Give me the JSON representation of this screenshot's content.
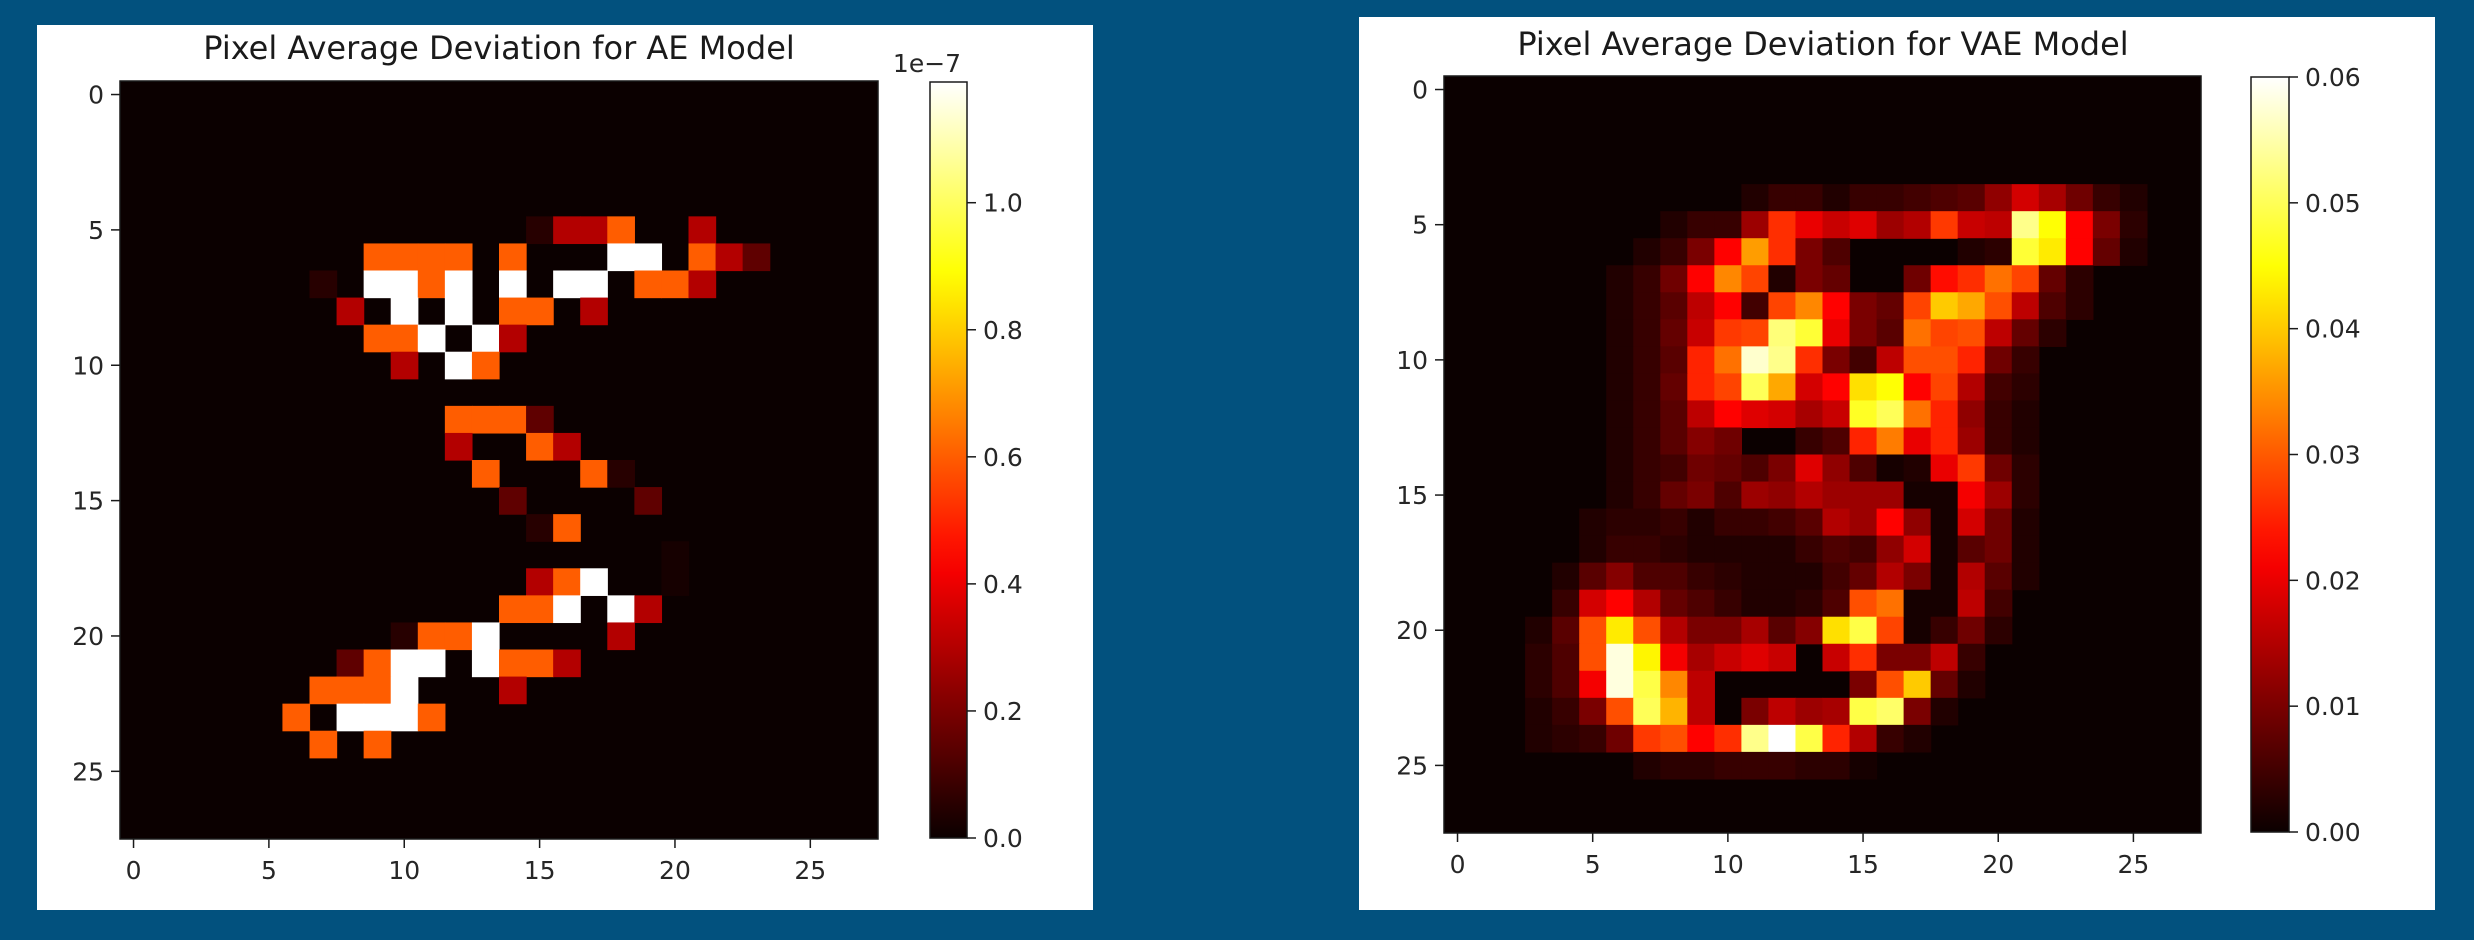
{
  "background_color": "#02517e",
  "colormap": "hot",
  "chart_data": [
    {
      "type": "heatmap",
      "title": "Pixel Average Deviation for AE Model",
      "xlabel": "",
      "ylabel": "",
      "x_ticks": [
        "0",
        "5",
        "10",
        "15",
        "20",
        "25"
      ],
      "y_ticks": [
        "0",
        "5",
        "10",
        "15",
        "20",
        "25"
      ],
      "x_tick_values": [
        0,
        5,
        10,
        15,
        20,
        25
      ],
      "y_tick_values": [
        0,
        5,
        10,
        15,
        20,
        25
      ],
      "shape": [
        28,
        28
      ],
      "colorbar": {
        "min": 0.0,
        "max": 1.19,
        "offset_label": "1e−7",
        "ticks": [
          "0.0",
          "0.2",
          "0.4",
          "0.6",
          "0.8",
          "1.0"
        ],
        "tick_values": [
          0.0,
          0.2,
          0.4,
          0.6,
          0.8,
          1.0
        ]
      },
      "cells_note_units": "1e-7",
      "cells": [
        {
          "r": 5,
          "c": 15,
          "v": 0.05
        },
        {
          "r": 5,
          "c": 16,
          "v": 0.3
        },
        {
          "r": 5,
          "c": 17,
          "v": 0.3
        },
        {
          "r": 5,
          "c": 18,
          "v": 0.6
        },
        {
          "r": 5,
          "c": 21,
          "v": 0.3
        },
        {
          "r": 6,
          "c": 9,
          "v": 0.6
        },
        {
          "r": 6,
          "c": 10,
          "v": 0.6
        },
        {
          "r": 6,
          "c": 11,
          "v": 0.6
        },
        {
          "r": 6,
          "c": 12,
          "v": 0.6
        },
        {
          "r": 6,
          "c": 14,
          "v": 0.6
        },
        {
          "r": 6,
          "c": 18,
          "v": 1.19
        },
        {
          "r": 6,
          "c": 19,
          "v": 1.19
        },
        {
          "r": 6,
          "c": 21,
          "v": 0.6
        },
        {
          "r": 6,
          "c": 22,
          "v": 0.3
        },
        {
          "r": 6,
          "c": 23,
          "v": 0.15
        },
        {
          "r": 7,
          "c": 7,
          "v": 0.05
        },
        {
          "r": 7,
          "c": 9,
          "v": 1.19
        },
        {
          "r": 7,
          "c": 10,
          "v": 1.19
        },
        {
          "r": 7,
          "c": 11,
          "v": 0.6
        },
        {
          "r": 7,
          "c": 12,
          "v": 1.19
        },
        {
          "r": 7,
          "c": 14,
          "v": 1.19
        },
        {
          "r": 7,
          "c": 16,
          "v": 1.19
        },
        {
          "r": 7,
          "c": 17,
          "v": 1.19
        },
        {
          "r": 7,
          "c": 19,
          "v": 0.6
        },
        {
          "r": 7,
          "c": 20,
          "v": 0.6
        },
        {
          "r": 7,
          "c": 21,
          "v": 0.3
        },
        {
          "r": 8,
          "c": 8,
          "v": 0.3
        },
        {
          "r": 8,
          "c": 10,
          "v": 1.19
        },
        {
          "r": 8,
          "c": 12,
          "v": 1.19
        },
        {
          "r": 8,
          "c": 14,
          "v": 0.6
        },
        {
          "r": 8,
          "c": 15,
          "v": 0.6
        },
        {
          "r": 8,
          "c": 17,
          "v": 0.3
        },
        {
          "r": 9,
          "c": 9,
          "v": 0.6
        },
        {
          "r": 9,
          "c": 10,
          "v": 0.6
        },
        {
          "r": 9,
          "c": 11,
          "v": 1.19
        },
        {
          "r": 9,
          "c": 13,
          "v": 1.19
        },
        {
          "r": 9,
          "c": 14,
          "v": 0.3
        },
        {
          "r": 10,
          "c": 10,
          "v": 0.3
        },
        {
          "r": 10,
          "c": 12,
          "v": 1.19
        },
        {
          "r": 10,
          "c": 13,
          "v": 0.6
        },
        {
          "r": 12,
          "c": 12,
          "v": 0.6
        },
        {
          "r": 12,
          "c": 13,
          "v": 0.6
        },
        {
          "r": 12,
          "c": 14,
          "v": 0.6
        },
        {
          "r": 12,
          "c": 15,
          "v": 0.15
        },
        {
          "r": 13,
          "c": 12,
          "v": 0.3
        },
        {
          "r": 13,
          "c": 15,
          "v": 0.6
        },
        {
          "r": 13,
          "c": 16,
          "v": 0.3
        },
        {
          "r": 14,
          "c": 13,
          "v": 0.6
        },
        {
          "r": 14,
          "c": 17,
          "v": 0.6
        },
        {
          "r": 14,
          "c": 18,
          "v": 0.05
        },
        {
          "r": 15,
          "c": 14,
          "v": 0.15
        },
        {
          "r": 15,
          "c": 19,
          "v": 0.15
        },
        {
          "r": 16,
          "c": 15,
          "v": 0.05
        },
        {
          "r": 16,
          "c": 16,
          "v": 0.6
        },
        {
          "r": 17,
          "c": 20,
          "v": 0.02
        },
        {
          "r": 18,
          "c": 15,
          "v": 0.3
        },
        {
          "r": 18,
          "c": 16,
          "v": 0.6
        },
        {
          "r": 18,
          "c": 17,
          "v": 1.19
        },
        {
          "r": 18,
          "c": 20,
          "v": 0.02
        },
        {
          "r": 19,
          "c": 14,
          "v": 0.6
        },
        {
          "r": 19,
          "c": 15,
          "v": 0.6
        },
        {
          "r": 19,
          "c": 16,
          "v": 1.19
        },
        {
          "r": 19,
          "c": 18,
          "v": 1.19
        },
        {
          "r": 19,
          "c": 19,
          "v": 0.3
        },
        {
          "r": 20,
          "c": 10,
          "v": 0.05
        },
        {
          "r": 20,
          "c": 11,
          "v": 0.6
        },
        {
          "r": 20,
          "c": 12,
          "v": 0.6
        },
        {
          "r": 20,
          "c": 13,
          "v": 1.19
        },
        {
          "r": 20,
          "c": 18,
          "v": 0.3
        },
        {
          "r": 21,
          "c": 8,
          "v": 0.15
        },
        {
          "r": 21,
          "c": 9,
          "v": 0.6
        },
        {
          "r": 21,
          "c": 10,
          "v": 1.19
        },
        {
          "r": 21,
          "c": 11,
          "v": 1.19
        },
        {
          "r": 21,
          "c": 13,
          "v": 1.19
        },
        {
          "r": 21,
          "c": 14,
          "v": 0.6
        },
        {
          "r": 21,
          "c": 15,
          "v": 0.6
        },
        {
          "r": 21,
          "c": 16,
          "v": 0.3
        },
        {
          "r": 22,
          "c": 7,
          "v": 0.6
        },
        {
          "r": 22,
          "c": 8,
          "v": 0.6
        },
        {
          "r": 22,
          "c": 9,
          "v": 0.6
        },
        {
          "r": 22,
          "c": 10,
          "v": 1.19
        },
        {
          "r": 22,
          "c": 14,
          "v": 0.3
        },
        {
          "r": 23,
          "c": 6,
          "v": 0.6
        },
        {
          "r": 23,
          "c": 8,
          "v": 1.19
        },
        {
          "r": 23,
          "c": 9,
          "v": 1.19
        },
        {
          "r": 23,
          "c": 10,
          "v": 1.19
        },
        {
          "r": 23,
          "c": 11,
          "v": 0.6
        },
        {
          "r": 24,
          "c": 7,
          "v": 0.6
        },
        {
          "r": 24,
          "c": 9,
          "v": 0.6
        }
      ]
    },
    {
      "type": "heatmap",
      "title": "Pixel Average Deviation for VAE Model",
      "xlabel": "",
      "ylabel": "",
      "x_ticks": [
        "0",
        "5",
        "10",
        "15",
        "20",
        "25"
      ],
      "y_ticks": [
        "0",
        "5",
        "10",
        "15",
        "20",
        "25"
      ],
      "x_tick_values": [
        0,
        5,
        10,
        15,
        20,
        25
      ],
      "y_tick_values": [
        0,
        5,
        10,
        15,
        20,
        25
      ],
      "shape": [
        28,
        28
      ],
      "colorbar": {
        "min": 0.0,
        "max": 0.06,
        "offset_label": "",
        "ticks": [
          "0.00",
          "0.01",
          "0.02",
          "0.03",
          "0.04",
          "0.05",
          "0.06"
        ],
        "tick_values": [
          0.0,
          0.01,
          0.02,
          0.03,
          0.04,
          0.05,
          0.06
        ]
      },
      "rows": {
        "4": {
          "start": 11,
          "values": [
            0.002,
            0.004,
            0.004,
            0.002,
            0.004,
            0.004,
            0.005,
            0.006,
            0.007,
            0.012,
            0.018,
            0.014,
            0.009,
            0.004,
            0.002
          ]
        },
        "5": {
          "start": 8,
          "values": [
            0.002,
            0.004,
            0.004,
            0.013,
            0.026,
            0.02,
            0.017,
            0.019,
            0.013,
            0.015,
            0.027,
            0.017,
            0.016,
            0.053,
            0.045,
            0.022,
            0.01,
            0.003
          ]
        },
        "6": {
          "start": 7,
          "values": [
            0.002,
            0.004,
            0.01,
            0.022,
            0.036,
            0.026,
            0.01,
            0.006,
            0,
            0,
            0,
            0,
            0.002,
            0.003,
            0.048,
            0.043,
            0.022,
            0.008,
            0.002
          ]
        },
        "7": {
          "start": 6,
          "values": [
            0.002,
            0.004,
            0.009,
            0.022,
            0.034,
            0.028,
            0.002,
            0.01,
            0.008,
            0,
            0,
            0.009,
            0.023,
            0.026,
            0.032,
            0.028,
            0.008,
            0.003
          ]
        },
        "8": {
          "start": 6,
          "values": [
            0.002,
            0.004,
            0.007,
            0.016,
            0.022,
            0.005,
            0.028,
            0.034,
            0.022,
            0.01,
            0.008,
            0.028,
            0.04,
            0.037,
            0.029,
            0.016,
            0.006,
            0.003
          ]
        },
        "9": {
          "start": 6,
          "values": [
            0.002,
            0.004,
            0.008,
            0.017,
            0.027,
            0.028,
            0.052,
            0.048,
            0.02,
            0.01,
            0.007,
            0.032,
            0.028,
            0.029,
            0.016,
            0.008,
            0.003
          ]
        },
        "10": {
          "start": 6,
          "values": [
            0.002,
            0.004,
            0.007,
            0.025,
            0.032,
            0.057,
            0.053,
            0.026,
            0.01,
            0.005,
            0.016,
            0.029,
            0.029,
            0.025,
            0.009,
            0.004
          ]
        },
        "11": {
          "start": 6,
          "values": [
            0.002,
            0.004,
            0.008,
            0.025,
            0.028,
            0.05,
            0.037,
            0.018,
            0.022,
            0.042,
            0.045,
            0.022,
            0.028,
            0.015,
            0.005,
            0.003
          ]
        },
        "12": {
          "start": 6,
          "values": [
            0.002,
            0.004,
            0.007,
            0.016,
            0.022,
            0.019,
            0.018,
            0.014,
            0.017,
            0.047,
            0.05,
            0.032,
            0.025,
            0.012,
            0.004,
            0.002
          ]
        },
        "13": {
          "start": 6,
          "values": [
            0.002,
            0.004,
            0.007,
            0.011,
            0.009,
            0,
            0,
            0.004,
            0.006,
            0.025,
            0.033,
            0.02,
            0.025,
            0.013,
            0.004,
            0.002
          ]
        },
        "14": {
          "start": 6,
          "values": [
            0.002,
            0.004,
            0.005,
            0.009,
            0.008,
            0.006,
            0.01,
            0.019,
            0.012,
            0.006,
            0.001,
            0.002,
            0.02,
            0.027,
            0.009,
            0.003
          ]
        },
        "15": {
          "start": 6,
          "values": [
            0.002,
            0.004,
            0.008,
            0.01,
            0.006,
            0.013,
            0.012,
            0.015,
            0.013,
            0.013,
            0.013,
            0.001,
            0.001,
            0.021,
            0.013,
            0.003
          ]
        },
        "16": {
          "start": 5,
          "values": [
            0.002,
            0.003,
            0.003,
            0.004,
            0.002,
            0.004,
            0.004,
            0.005,
            0.007,
            0.015,
            0.013,
            0.022,
            0.012,
            0.001,
            0.018,
            0.009,
            0.002
          ]
        },
        "17": {
          "start": 5,
          "values": [
            0.002,
            0.004,
            0.004,
            0.003,
            0.002,
            0.002,
            0.002,
            0.002,
            0.004,
            0.006,
            0.005,
            0.012,
            0.018,
            0.001,
            0.007,
            0.009,
            0.002
          ]
        },
        "18": {
          "start": 4,
          "values": [
            0.002,
            0.007,
            0.011,
            0.006,
            0.006,
            0.004,
            0.003,
            0.002,
            0.002,
            0.002,
            0.005,
            0.008,
            0.015,
            0.01,
            0.001,
            0.015,
            0.007,
            0.002
          ]
        },
        "19": {
          "start": 4,
          "values": [
            0.004,
            0.018,
            0.022,
            0.015,
            0.008,
            0.006,
            0.004,
            0.002,
            0.002,
            0.003,
            0.006,
            0.029,
            0.032,
            0.001,
            0.001,
            0.016,
            0.005
          ]
        },
        "20": {
          "start": 3,
          "values": [
            0.002,
            0.007,
            0.029,
            0.043,
            0.029,
            0.015,
            0.01,
            0.01,
            0.014,
            0.007,
            0.011,
            0.042,
            0.049,
            0.028,
            0.001,
            0.004,
            0.009,
            0.003
          ]
        },
        "21": {
          "start": 3,
          "values": [
            0.003,
            0.006,
            0.029,
            0.058,
            0.044,
            0.021,
            0.014,
            0.017,
            0.019,
            0.017,
            0,
            0.017,
            0.026,
            0.01,
            0.01,
            0.016,
            0.004
          ]
        },
        "22": {
          "start": 3,
          "values": [
            0.003,
            0.006,
            0.021,
            0.058,
            0.049,
            0.034,
            0.016,
            0,
            0,
            0,
            0,
            0,
            0.01,
            0.029,
            0.04,
            0.008,
            0.002
          ]
        },
        "23": {
          "start": 3,
          "values": [
            0.002,
            0.004,
            0.01,
            0.029,
            0.05,
            0.038,
            0.016,
            0,
            0.01,
            0.016,
            0.013,
            0.014,
            0.049,
            0.051,
            0.01,
            0.002
          ]
        },
        "24": {
          "start": 3,
          "values": [
            0.002,
            0.003,
            0.004,
            0.009,
            0.027,
            0.029,
            0.022,
            0.026,
            0.053,
            0.06,
            0.049,
            0.025,
            0.015,
            0.004,
            0.002
          ]
        },
        "25": {
          "start": 7,
          "values": [
            0.002,
            0.003,
            0.003,
            0.004,
            0.004,
            0.004,
            0.003,
            0.003,
            0.001
          ]
        }
      }
    }
  ]
}
